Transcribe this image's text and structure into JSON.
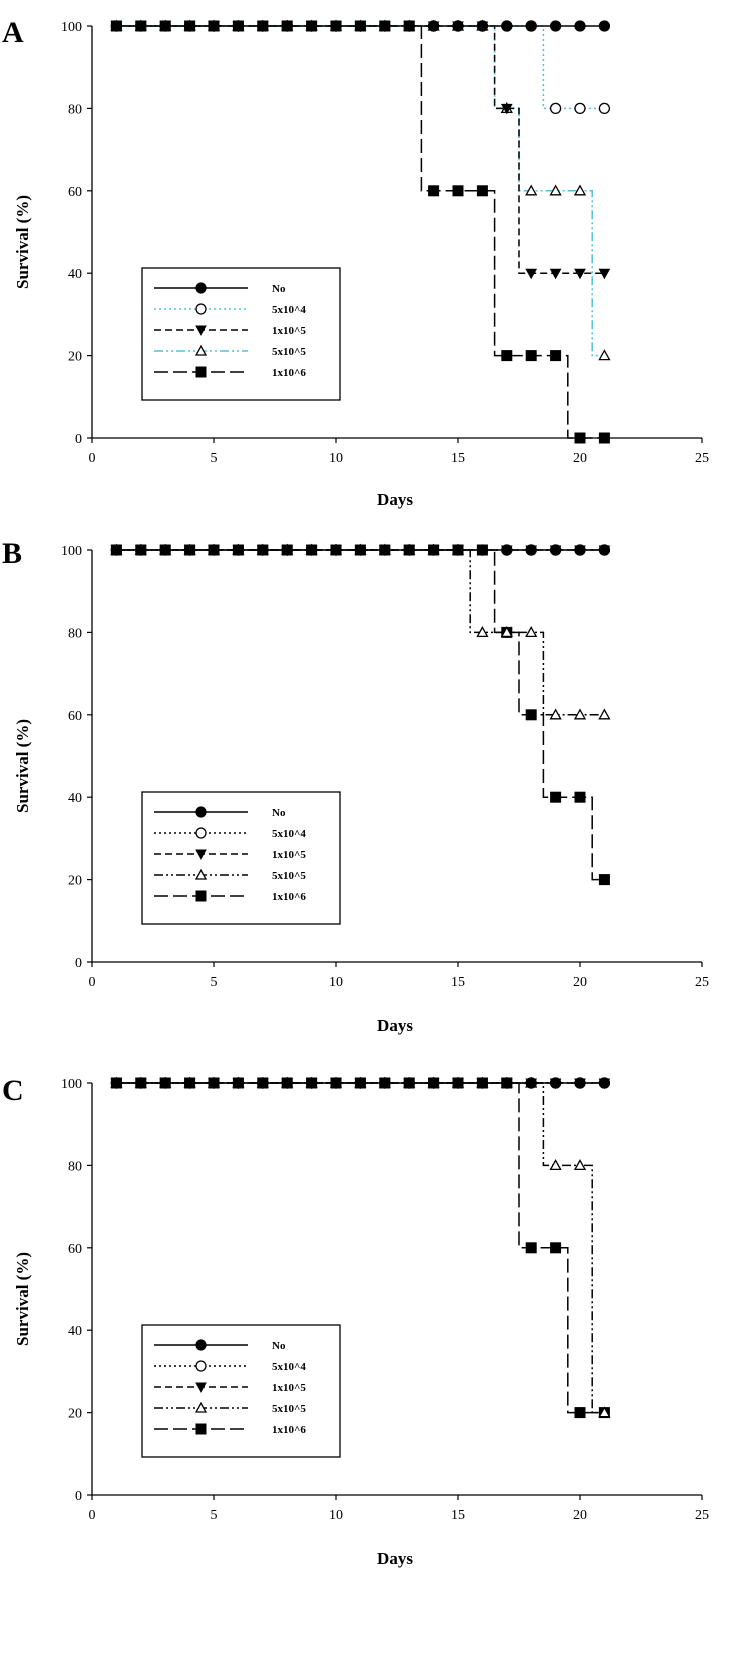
{
  "colors": {
    "black": "#000000",
    "cyan": "#4fc3d9"
  },
  "chart_data": [
    {
      "type": "line",
      "panel": "A",
      "xlabel": "Days",
      "ylabel": "Survival (%)",
      "xlim": [
        0,
        25
      ],
      "ylim": [
        0,
        100
      ],
      "xticks": [
        "0",
        "5",
        "10",
        "15",
        "20",
        "25"
      ],
      "yticks": [
        "0",
        "20",
        "40",
        "60",
        "80",
        "100"
      ],
      "legend_position": "lower-left",
      "grid": false,
      "series": [
        {
          "name": "No",
          "style": "solid",
          "color": "#000000",
          "marker": "filled-circle",
          "x": [
            1,
            2,
            3,
            4,
            5,
            6,
            7,
            8,
            9,
            10,
            11,
            12,
            13,
            14,
            15,
            16,
            17,
            18,
            19,
            20,
            21
          ],
          "y": [
            100,
            100,
            100,
            100,
            100,
            100,
            100,
            100,
            100,
            100,
            100,
            100,
            100,
            100,
            100,
            100,
            100,
            100,
            100,
            100,
            100
          ]
        },
        {
          "name": "5x10^4",
          "style": "dotted",
          "color": "#4fc3d9",
          "marker": "open-circle",
          "x": [
            1,
            2,
            3,
            4,
            5,
            6,
            7,
            8,
            9,
            10,
            11,
            12,
            13,
            14,
            15,
            16,
            17,
            18,
            19,
            20,
            21
          ],
          "y": [
            100,
            100,
            100,
            100,
            100,
            100,
            100,
            100,
            100,
            100,
            100,
            100,
            100,
            100,
            100,
            100,
            100,
            100,
            80,
            80,
            80
          ]
        },
        {
          "name": "1x10^5",
          "style": "dashed",
          "color": "#000000",
          "marker": "filled-triangle-down",
          "x": [
            1,
            2,
            3,
            4,
            5,
            6,
            7,
            8,
            9,
            10,
            11,
            12,
            13,
            14,
            15,
            16,
            17,
            18,
            19,
            20,
            21
          ],
          "y": [
            100,
            100,
            100,
            100,
            100,
            100,
            100,
            100,
            100,
            100,
            100,
            100,
            100,
            100,
            100,
            100,
            80,
            40,
            40,
            40,
            40
          ]
        },
        {
          "name": "5x10^5",
          "style": "dash-dot",
          "color": "#4fc3d9",
          "marker": "open-triangle",
          "x": [
            1,
            2,
            3,
            4,
            5,
            6,
            7,
            8,
            9,
            10,
            11,
            12,
            13,
            14,
            15,
            16,
            17,
            18,
            19,
            20,
            21
          ],
          "y": [
            100,
            100,
            100,
            100,
            100,
            100,
            100,
            100,
            100,
            100,
            100,
            100,
            100,
            100,
            100,
            100,
            80,
            60,
            60,
            60,
            20
          ]
        },
        {
          "name": "1x10^6",
          "style": "long-dash",
          "color": "#000000",
          "marker": "filled-square",
          "x": [
            1,
            2,
            3,
            4,
            5,
            6,
            7,
            8,
            9,
            10,
            11,
            12,
            13,
            14,
            15,
            16,
            17,
            18,
            19,
            20,
            21
          ],
          "y": [
            100,
            100,
            100,
            100,
            100,
            100,
            100,
            100,
            100,
            100,
            100,
            100,
            100,
            60,
            60,
            60,
            20,
            20,
            20,
            0,
            0
          ]
        }
      ]
    },
    {
      "type": "line",
      "panel": "B",
      "xlabel": "Days",
      "ylabel": "Survival (%)",
      "xlim": [
        0,
        25
      ],
      "ylim": [
        0,
        100
      ],
      "xticks": [
        "0",
        "5",
        "10",
        "15",
        "20",
        "25"
      ],
      "yticks": [
        "0",
        "20",
        "40",
        "60",
        "80",
        "100"
      ],
      "legend_position": "lower-left",
      "grid": false,
      "series": [
        {
          "name": "No",
          "style": "solid",
          "color": "#000000",
          "marker": "filled-circle",
          "x": [
            1,
            2,
            3,
            4,
            5,
            6,
            7,
            8,
            9,
            10,
            11,
            12,
            13,
            14,
            15,
            16,
            17,
            18,
            19,
            20,
            21
          ],
          "y": [
            100,
            100,
            100,
            100,
            100,
            100,
            100,
            100,
            100,
            100,
            100,
            100,
            100,
            100,
            100,
            100,
            100,
            100,
            100,
            100,
            100
          ]
        },
        {
          "name": "5x10^4",
          "style": "dotted",
          "color": "#000000",
          "marker": "open-circle",
          "x": [
            1,
            2,
            3,
            4,
            5,
            6,
            7,
            8,
            9,
            10,
            11,
            12,
            13,
            14,
            15,
            16,
            17,
            18,
            19,
            20,
            21
          ],
          "y": [
            100,
            100,
            100,
            100,
            100,
            100,
            100,
            100,
            100,
            100,
            100,
            100,
            100,
            100,
            100,
            100,
            100,
            100,
            100,
            100,
            100
          ]
        },
        {
          "name": "1x10^5",
          "style": "dashed",
          "color": "#000000",
          "marker": "filled-triangle-down",
          "x": [
            1,
            2,
            3,
            4,
            5,
            6,
            7,
            8,
            9,
            10,
            11,
            12,
            13,
            14,
            15,
            16,
            17,
            18,
            19,
            20,
            21
          ],
          "y": [
            100,
            100,
            100,
            100,
            100,
            100,
            100,
            100,
            100,
            100,
            100,
            100,
            100,
            100,
            100,
            100,
            100,
            100,
            100,
            100,
            100
          ]
        },
        {
          "name": "5x10^5",
          "style": "dash-dot",
          "color": "#000000",
          "marker": "open-triangle",
          "x": [
            1,
            2,
            3,
            4,
            5,
            6,
            7,
            8,
            9,
            10,
            11,
            12,
            13,
            14,
            15,
            16,
            17,
            18,
            19,
            20,
            21
          ],
          "y": [
            100,
            100,
            100,
            100,
            100,
            100,
            100,
            100,
            100,
            100,
            100,
            100,
            100,
            100,
            100,
            80,
            80,
            80,
            60,
            60,
            60
          ]
        },
        {
          "name": "1x10^6",
          "style": "long-dash",
          "color": "#000000",
          "marker": "filled-square",
          "x": [
            1,
            2,
            3,
            4,
            5,
            6,
            7,
            8,
            9,
            10,
            11,
            12,
            13,
            14,
            15,
            16,
            17,
            18,
            19,
            20,
            21
          ],
          "y": [
            100,
            100,
            100,
            100,
            100,
            100,
            100,
            100,
            100,
            100,
            100,
            100,
            100,
            100,
            100,
            100,
            80,
            60,
            40,
            40,
            20
          ]
        }
      ]
    },
    {
      "type": "line",
      "panel": "C",
      "xlabel": "Days",
      "ylabel": "Survival (%)",
      "xlim": [
        0,
        25
      ],
      "ylim": [
        0,
        100
      ],
      "xticks": [
        "0",
        "5",
        "10",
        "15",
        "20",
        "25"
      ],
      "yticks": [
        "0",
        "20",
        "40",
        "60",
        "80",
        "100"
      ],
      "legend_position": "lower-left",
      "grid": false,
      "series": [
        {
          "name": "No",
          "style": "solid",
          "color": "#000000",
          "marker": "filled-circle",
          "x": [
            1,
            2,
            3,
            4,
            5,
            6,
            7,
            8,
            9,
            10,
            11,
            12,
            13,
            14,
            15,
            16,
            17,
            18,
            19,
            20,
            21
          ],
          "y": [
            100,
            100,
            100,
            100,
            100,
            100,
            100,
            100,
            100,
            100,
            100,
            100,
            100,
            100,
            100,
            100,
            100,
            100,
            100,
            100,
            100
          ]
        },
        {
          "name": "5x10^4",
          "style": "dotted",
          "color": "#000000",
          "marker": "open-circle",
          "x": [
            1,
            2,
            3,
            4,
            5,
            6,
            7,
            8,
            9,
            10,
            11,
            12,
            13,
            14,
            15,
            16,
            17,
            18,
            19,
            20,
            21
          ],
          "y": [
            100,
            100,
            100,
            100,
            100,
            100,
            100,
            100,
            100,
            100,
            100,
            100,
            100,
            100,
            100,
            100,
            100,
            100,
            100,
            100,
            100
          ]
        },
        {
          "name": "1x10^5",
          "style": "dashed",
          "color": "#000000",
          "marker": "filled-triangle-down",
          "x": [
            1,
            2,
            3,
            4,
            5,
            6,
            7,
            8,
            9,
            10,
            11,
            12,
            13,
            14,
            15,
            16,
            17,
            18,
            19,
            20,
            21
          ],
          "y": [
            100,
            100,
            100,
            100,
            100,
            100,
            100,
            100,
            100,
            100,
            100,
            100,
            100,
            100,
            100,
            100,
            100,
            100,
            100,
            100,
            100
          ]
        },
        {
          "name": "5x10^5",
          "style": "dash-dot",
          "color": "#000000",
          "marker": "open-triangle",
          "x": [
            1,
            2,
            3,
            4,
            5,
            6,
            7,
            8,
            9,
            10,
            11,
            12,
            13,
            14,
            15,
            16,
            17,
            18,
            19,
            20,
            21
          ],
          "y": [
            100,
            100,
            100,
            100,
            100,
            100,
            100,
            100,
            100,
            100,
            100,
            100,
            100,
            100,
            100,
            100,
            100,
            100,
            80,
            80,
            20
          ]
        },
        {
          "name": "1x10^6",
          "style": "long-dash",
          "color": "#000000",
          "marker": "filled-square",
          "x": [
            1,
            2,
            3,
            4,
            5,
            6,
            7,
            8,
            9,
            10,
            11,
            12,
            13,
            14,
            15,
            16,
            17,
            18,
            19,
            20,
            21
          ],
          "y": [
            100,
            100,
            100,
            100,
            100,
            100,
            100,
            100,
            100,
            100,
            100,
            100,
            100,
            100,
            100,
            100,
            100,
            60,
            60,
            20,
            20
          ]
        }
      ]
    }
  ]
}
